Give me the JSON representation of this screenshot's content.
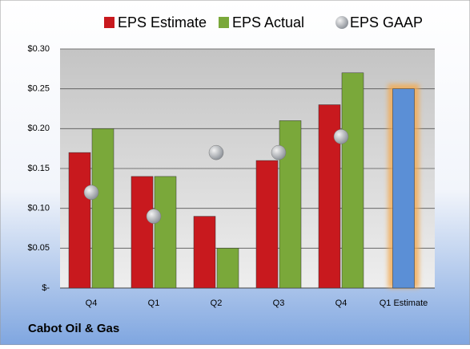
{
  "chart_data": {
    "type": "bar",
    "title": "Cabot Oil & Gas",
    "categories": [
      "Q4",
      "Q1",
      "Q2",
      "Q3",
      "Q4",
      "Q1 Estimate"
    ],
    "series": [
      {
        "name": "EPS Estimate",
        "type": "bar",
        "color": "#c8191e",
        "colors": [
          "#c8191e",
          "#c8191e",
          "#c8191e",
          "#c8191e",
          "#c8191e",
          "#5b8fd6"
        ],
        "values": [
          0.17,
          0.14,
          0.09,
          0.16,
          0.23,
          0.25
        ]
      },
      {
        "name": "EPS Actual",
        "type": "bar",
        "color": "#7aa83a",
        "values": [
          0.2,
          0.14,
          0.05,
          0.21,
          0.27,
          null
        ]
      },
      {
        "name": "EPS GAAP",
        "type": "scatter",
        "color": "#9aa0a6",
        "values": [
          0.12,
          0.09,
          0.17,
          0.17,
          0.19,
          null
        ]
      }
    ],
    "ylim": [
      0,
      0.3
    ],
    "yticks": [
      {
        "value": 0,
        "label": "$-"
      },
      {
        "value": 0.05,
        "label": "$0.05"
      },
      {
        "value": 0.1,
        "label": "$0.10"
      },
      {
        "value": 0.15,
        "label": "$0.15"
      },
      {
        "value": 0.2,
        "label": "$0.20"
      },
      {
        "value": 0.25,
        "label": "$0.25"
      },
      {
        "value": 0.3,
        "label": "$0.30"
      }
    ],
    "grid": true,
    "legend": "top"
  }
}
